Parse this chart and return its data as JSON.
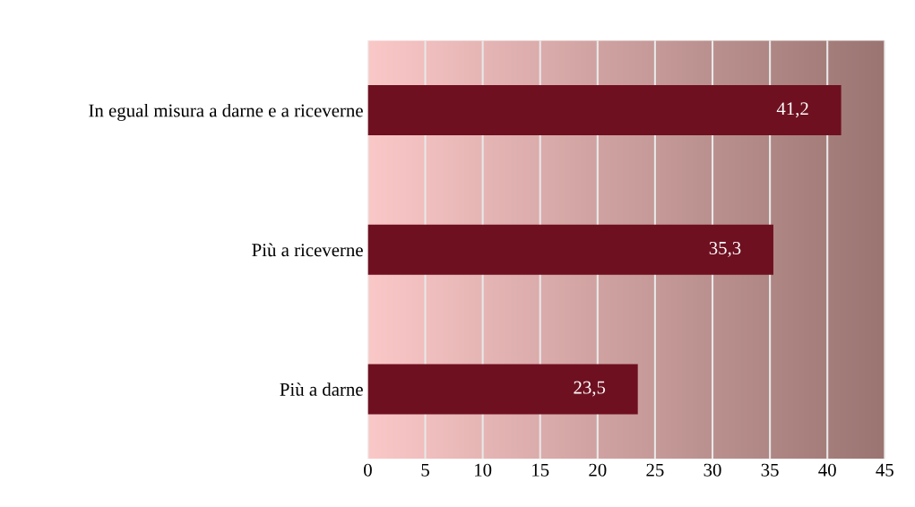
{
  "chart_data": {
    "type": "bar",
    "orientation": "horizontal",
    "categories": [
      "In egual misura a darne e a riceverne",
      "Più a riceverne",
      "Più a darne"
    ],
    "values": [
      41.2,
      35.3,
      23.5
    ],
    "value_labels": [
      "41,2",
      "35,3",
      "23,5"
    ],
    "color": "#6e1020",
    "xlim": [
      0,
      45
    ],
    "xticks": [
      0,
      5,
      10,
      15,
      20,
      25,
      30,
      35,
      40,
      45
    ],
    "grid": "x"
  }
}
